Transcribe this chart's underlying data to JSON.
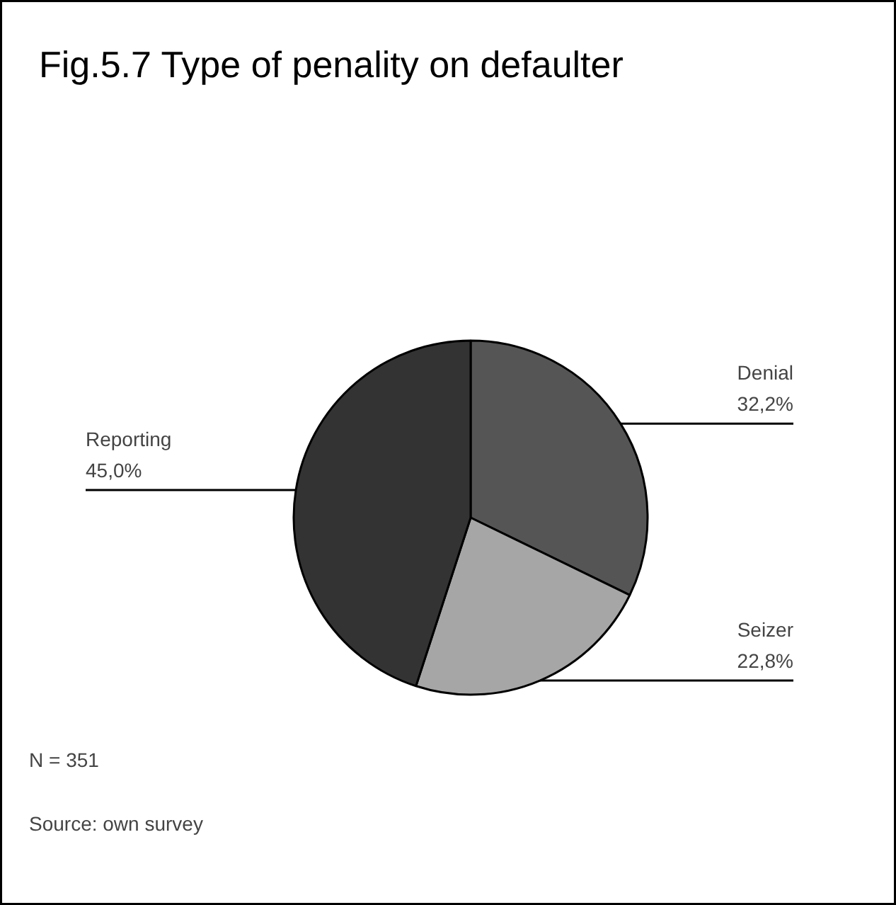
{
  "chart_data": {
    "type": "pie",
    "title": "Fig.5.7 Type of penality on defaulter",
    "categories": [
      "Denial",
      "Seizer",
      "Reporting"
    ],
    "values": [
      32.2,
      22.8,
      45.0
    ],
    "colors": [
      "#555555",
      "#a6a6a6",
      "#333333"
    ],
    "value_labels": [
      "32,2%",
      "22,8%",
      "45,0%"
    ],
    "annotations": [
      "N = 351",
      "Source: own survey"
    ]
  }
}
